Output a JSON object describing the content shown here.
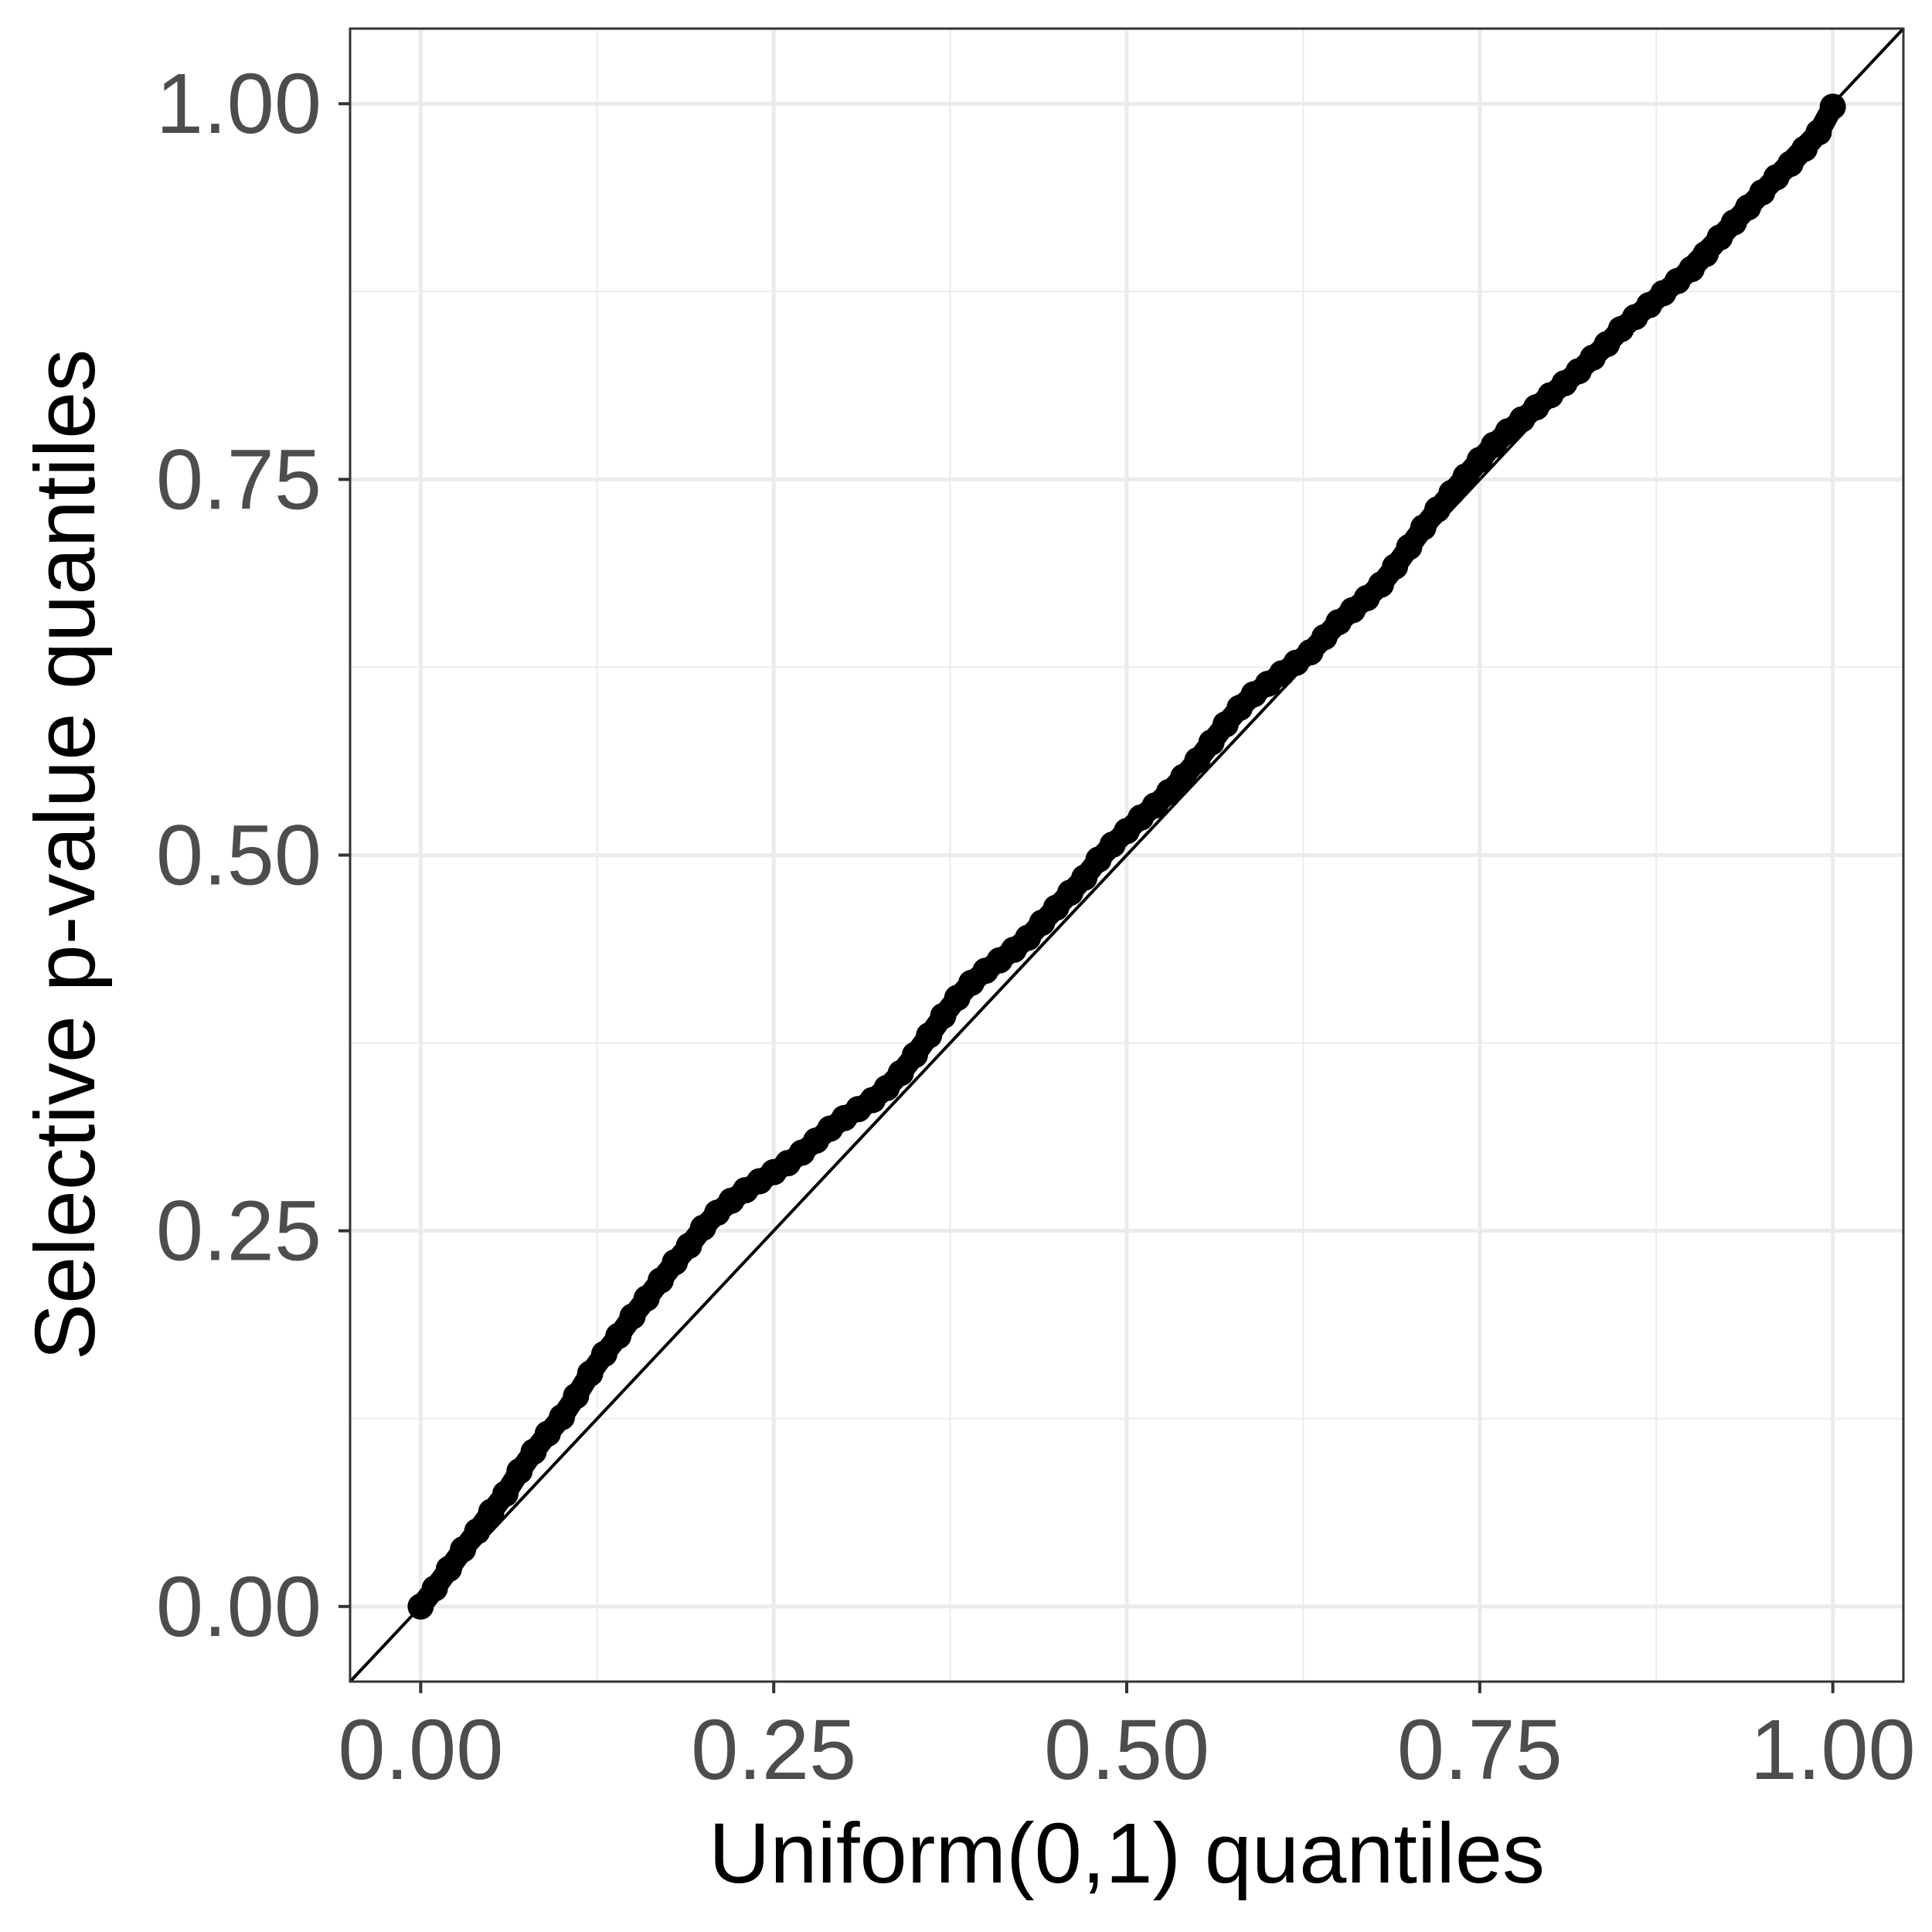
{
  "chart_data": {
    "type": "scatter",
    "title": "",
    "xlabel": "Uniform(0,1) quantiles",
    "ylabel": "Selective p-value quantiles",
    "xlim": [
      -0.05,
      1.05
    ],
    "ylim": [
      -0.05,
      1.05
    ],
    "x_ticks": [
      0,
      0.25,
      0.5,
      0.75,
      1
    ],
    "x_tick_labels": [
      "0.00",
      "0.25",
      "0.50",
      "0.75",
      "1.00"
    ],
    "y_ticks": [
      0,
      0.25,
      0.5,
      0.75,
      1
    ],
    "y_tick_labels": [
      "0.00",
      "0.25",
      "0.50",
      "0.75",
      "1.00"
    ],
    "grid": true,
    "reference_line": {
      "intercept": 0,
      "slope": 1
    },
    "series": [
      {
        "x": [
          0.0,
          0.01,
          0.02,
          0.03,
          0.04,
          0.05,
          0.06,
          0.07,
          0.08,
          0.09,
          0.1,
          0.11,
          0.12,
          0.13,
          0.14,
          0.15,
          0.16,
          0.17,
          0.18,
          0.19,
          0.2,
          0.21,
          0.22,
          0.23,
          0.24,
          0.25,
          0.26,
          0.27,
          0.28,
          0.29,
          0.3,
          0.31,
          0.32,
          0.33,
          0.34,
          0.35,
          0.36,
          0.37,
          0.38,
          0.39,
          0.4,
          0.41,
          0.42,
          0.43,
          0.44,
          0.45,
          0.46,
          0.47,
          0.48,
          0.49,
          0.5,
          0.51,
          0.52,
          0.53,
          0.54,
          0.55,
          0.56,
          0.57,
          0.58,
          0.59,
          0.6,
          0.61,
          0.62,
          0.63,
          0.64,
          0.65,
          0.66,
          0.67,
          0.68,
          0.69,
          0.7,
          0.71,
          0.72,
          0.73,
          0.74,
          0.75,
          0.76,
          0.77,
          0.78,
          0.79,
          0.8,
          0.81,
          0.82,
          0.83,
          0.84,
          0.85,
          0.86,
          0.87,
          0.88,
          0.89,
          0.9,
          0.91,
          0.92,
          0.93,
          0.94,
          0.95,
          0.96,
          0.97,
          0.98,
          0.99,
          1.0
        ],
        "values": [
          0.0,
          0.012,
          0.025,
          0.038,
          0.05,
          0.063,
          0.075,
          0.09,
          0.103,
          0.115,
          0.126,
          0.14,
          0.155,
          0.168,
          0.18,
          0.193,
          0.205,
          0.217,
          0.229,
          0.24,
          0.252,
          0.262,
          0.27,
          0.277,
          0.283,
          0.289,
          0.295,
          0.302,
          0.31,
          0.318,
          0.325,
          0.331,
          0.337,
          0.345,
          0.355,
          0.367,
          0.38,
          0.393,
          0.405,
          0.415,
          0.423,
          0.43,
          0.437,
          0.445,
          0.455,
          0.465,
          0.475,
          0.485,
          0.497,
          0.507,
          0.516,
          0.525,
          0.533,
          0.542,
          0.552,
          0.563,
          0.575,
          0.587,
          0.598,
          0.607,
          0.614,
          0.621,
          0.628,
          0.635,
          0.645,
          0.655,
          0.663,
          0.671,
          0.68,
          0.692,
          0.705,
          0.718,
          0.73,
          0.741,
          0.752,
          0.763,
          0.773,
          0.782,
          0.79,
          0.798,
          0.806,
          0.814,
          0.822,
          0.831,
          0.84,
          0.85,
          0.858,
          0.866,
          0.874,
          0.882,
          0.89,
          0.9,
          0.911,
          0.921,
          0.931,
          0.941,
          0.951,
          0.96,
          0.97,
          0.981,
          0.998
        ]
      }
    ]
  }
}
